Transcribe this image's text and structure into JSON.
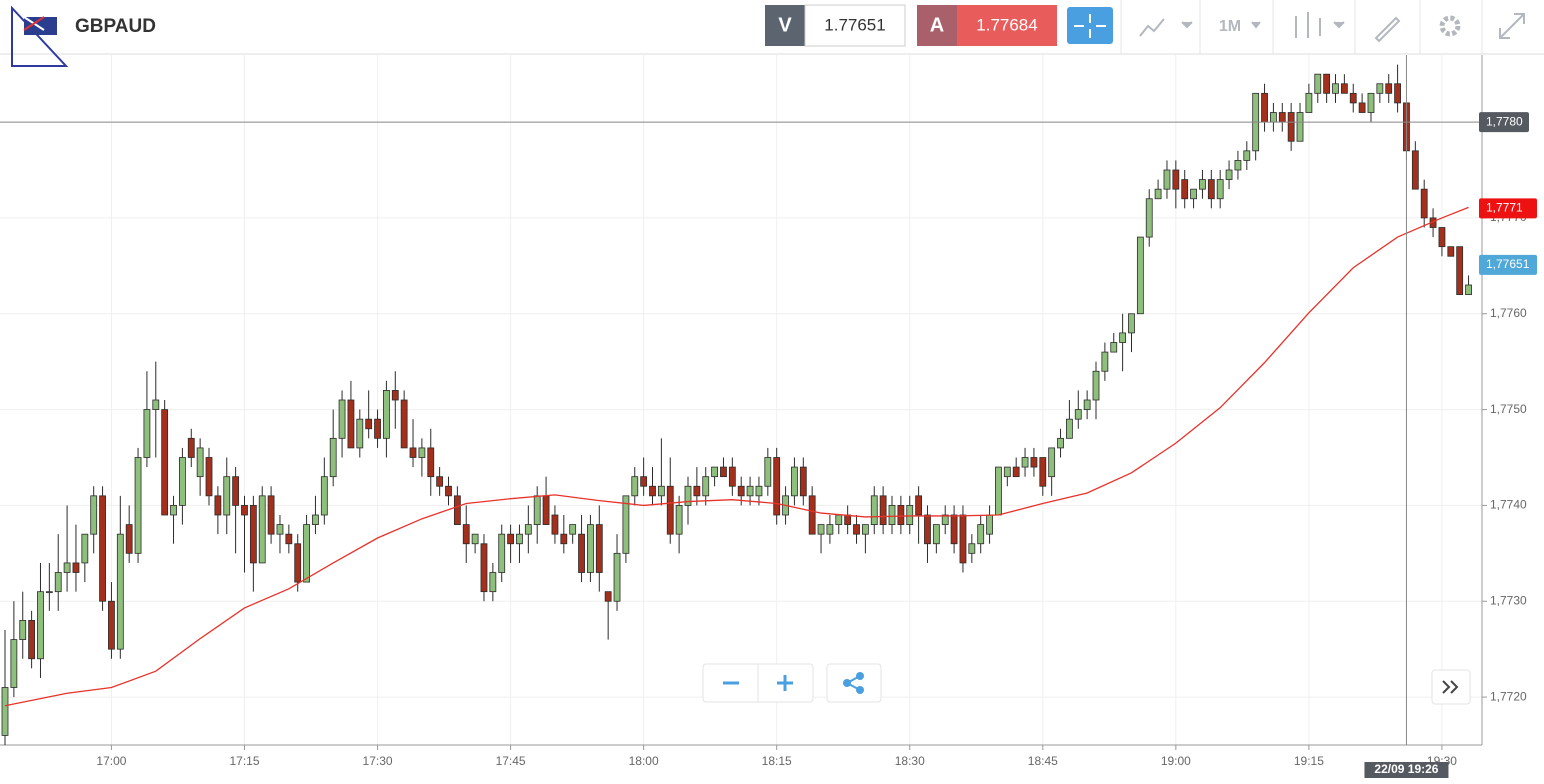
{
  "header": {
    "symbol": "GBPAUD",
    "bid_tag": "V",
    "bid": 1.77651,
    "ask_tag": "A",
    "ask": 1.77684,
    "timeframe": "1M"
  },
  "chart_data": {
    "type": "candlestick",
    "up_color": "#8fbf7c",
    "down_color": "#a3301c",
    "outline_color": "#2b2b2b",
    "grid": true,
    "x": [
      "16:48",
      "16:49",
      "16:50",
      "16:51",
      "16:52",
      "16:53",
      "16:54",
      "16:55",
      "16:56",
      "16:57",
      "16:58",
      "16:59",
      "17:00",
      "17:01",
      "17:02",
      "17:03",
      "17:04",
      "17:05",
      "17:06",
      "17:07",
      "17:08",
      "17:09",
      "17:10",
      "17:11",
      "17:12",
      "17:13",
      "17:14",
      "17:15",
      "17:16",
      "17:17",
      "17:18",
      "17:19",
      "17:20",
      "17:21",
      "17:22",
      "17:23",
      "17:24",
      "17:25",
      "17:26",
      "17:27",
      "17:28",
      "17:29",
      "17:30",
      "17:31",
      "17:32",
      "17:33",
      "17:34",
      "17:35",
      "17:36",
      "17:37",
      "17:38",
      "17:39",
      "17:40",
      "17:41",
      "17:42",
      "17:43",
      "17:44",
      "17:45",
      "17:46",
      "17:47",
      "17:48",
      "17:49",
      "17:50",
      "17:51",
      "17:52",
      "17:53",
      "17:54",
      "17:55",
      "17:56",
      "17:57",
      "17:58",
      "17:59",
      "18:00",
      "18:01",
      "18:02",
      "18:03",
      "18:04",
      "18:05",
      "18:06",
      "18:07",
      "18:08",
      "18:09",
      "18:10",
      "18:11",
      "18:12",
      "18:13",
      "18:14",
      "18:15",
      "18:16",
      "18:17",
      "18:18",
      "18:19",
      "18:20",
      "18:21",
      "18:22",
      "18:23",
      "18:24",
      "18:25",
      "18:26",
      "18:27",
      "18:28",
      "18:29",
      "18:30",
      "18:31",
      "18:32",
      "18:33",
      "18:34",
      "18:35",
      "18:36",
      "18:37",
      "18:38",
      "18:39",
      "18:40",
      "18:41",
      "18:42",
      "18:43",
      "18:44",
      "18:45",
      "18:46",
      "18:47",
      "18:48",
      "18:49",
      "18:50",
      "18:51",
      "18:52",
      "18:53",
      "18:54",
      "18:55",
      "18:56",
      "18:57",
      "18:58",
      "18:59",
      "19:00",
      "19:01",
      "19:02",
      "19:03",
      "19:04",
      "19:05",
      "19:06",
      "19:07",
      "19:08",
      "19:09",
      "19:10",
      "19:11",
      "19:12",
      "19:13",
      "19:14",
      "19:15",
      "19:16",
      "19:17",
      "19:18",
      "19:19",
      "19:20",
      "19:21",
      "19:22",
      "19:23",
      "19:24",
      "19:25",
      "19:26",
      "19:27",
      "19:28",
      "19:29",
      "19:30",
      "19:31",
      "19:32",
      "19:33"
    ],
    "ohlc": [
      [
        1.7716,
        1.7727,
        1.7715,
        1.7721
      ],
      [
        1.7721,
        1.773,
        1.772,
        1.7726
      ],
      [
        1.7726,
        1.7731,
        1.7724,
        1.7728
      ],
      [
        1.7728,
        1.7729,
        1.7723,
        1.7724
      ],
      [
        1.7724,
        1.7734,
        1.7722,
        1.7731
      ],
      [
        1.7731,
        1.7734,
        1.7729,
        1.7731
      ],
      [
        1.7731,
        1.7737,
        1.7729,
        1.7733
      ],
      [
        1.7733,
        1.774,
        1.7731,
        1.7734
      ],
      [
        1.7734,
        1.7738,
        1.7731,
        1.7733
      ],
      [
        1.7734,
        1.7737,
        1.7732,
        1.7737
      ],
      [
        1.7737,
        1.7742,
        1.7735,
        1.7741
      ],
      [
        1.7741,
        1.7742,
        1.7729,
        1.773
      ],
      [
        1.773,
        1.7732,
        1.7724,
        1.7725
      ],
      [
        1.7725,
        1.7741,
        1.7724,
        1.7737
      ],
      [
        1.7738,
        1.774,
        1.7734,
        1.7735
      ],
      [
        1.7735,
        1.7746,
        1.7734,
        1.7745
      ],
      [
        1.7745,
        1.7754,
        1.7744,
        1.775
      ],
      [
        1.775,
        1.7755,
        1.7745,
        1.7751
      ],
      [
        1.775,
        1.7751,
        1.7739,
        1.7739
      ],
      [
        1.7739,
        1.7741,
        1.7736,
        1.774
      ],
      [
        1.774,
        1.7746,
        1.7738,
        1.7745
      ],
      [
        1.7747,
        1.7748,
        1.7744,
        1.7745
      ],
      [
        1.7743,
        1.7747,
        1.7741,
        1.7746
      ],
      [
        1.7745,
        1.7746,
        1.774,
        1.7741
      ],
      [
        1.7741,
        1.7742,
        1.7737,
        1.7739
      ],
      [
        1.7739,
        1.7745,
        1.7737,
        1.7743
      ],
      [
        1.7743,
        1.7744,
        1.7735,
        1.774
      ],
      [
        1.774,
        1.7741,
        1.7733,
        1.7739
      ],
      [
        1.774,
        1.7741,
        1.7731,
        1.7734
      ],
      [
        1.7734,
        1.7742,
        1.7734,
        1.7741
      ],
      [
        1.7741,
        1.7742,
        1.7736,
        1.7737
      ],
      [
        1.7737,
        1.7739,
        1.7735,
        1.7738
      ],
      [
        1.7737,
        1.7738,
        1.7735,
        1.7736
      ],
      [
        1.7736,
        1.7737,
        1.7731,
        1.7732
      ],
      [
        1.7732,
        1.7739,
        1.7732,
        1.7738
      ],
      [
        1.7738,
        1.7741,
        1.7737,
        1.7739
      ],
      [
        1.7739,
        1.7745,
        1.7738,
        1.7743
      ],
      [
        1.7743,
        1.775,
        1.7742,
        1.7747
      ],
      [
        1.7747,
        1.7752,
        1.7745,
        1.7751
      ],
      [
        1.7751,
        1.7753,
        1.7746,
        1.7746
      ],
      [
        1.7746,
        1.775,
        1.7745,
        1.7749
      ],
      [
        1.7749,
        1.7752,
        1.7747,
        1.7748
      ],
      [
        1.7749,
        1.775,
        1.7746,
        1.7747
      ],
      [
        1.7747,
        1.7753,
        1.7745,
        1.7752
      ],
      [
        1.7752,
        1.7754,
        1.7748,
        1.7751
      ],
      [
        1.7751,
        1.7752,
        1.7746,
        1.7746
      ],
      [
        1.7746,
        1.7749,
        1.7744,
        1.7745
      ],
      [
        1.7745,
        1.7747,
        1.7743,
        1.7746
      ],
      [
        1.7746,
        1.7748,
        1.7741,
        1.7743
      ],
      [
        1.7743,
        1.7744,
        1.7741,
        1.7742
      ],
      [
        1.7742,
        1.7743,
        1.774,
        1.7741
      ],
      [
        1.7741,
        1.7742,
        1.7738,
        1.7738
      ],
      [
        1.7738,
        1.774,
        1.7734,
        1.7736
      ],
      [
        1.7736,
        1.7737,
        1.7735,
        1.7737
      ],
      [
        1.7736,
        1.7737,
        1.773,
        1.7731
      ],
      [
        1.7731,
        1.7734,
        1.773,
        1.7733
      ],
      [
        1.7733,
        1.7738,
        1.7732,
        1.7737
      ],
      [
        1.7737,
        1.7738,
        1.7734,
        1.7736
      ],
      [
        1.7736,
        1.7738,
        1.7734,
        1.7737
      ],
      [
        1.7737,
        1.774,
        1.7735,
        1.7738
      ],
      [
        1.7738,
        1.7742,
        1.7736,
        1.7741
      ],
      [
        1.7741,
        1.7743,
        1.7738,
        1.7738
      ],
      [
        1.7739,
        1.774,
        1.7736,
        1.7737
      ],
      [
        1.7737,
        1.7739,
        1.7735,
        1.7736
      ],
      [
        1.7737,
        1.7738,
        1.7736,
        1.7738
      ],
      [
        1.7737,
        1.7739,
        1.7732,
        1.7733
      ],
      [
        1.7733,
        1.7739,
        1.7732,
        1.7738
      ],
      [
        1.7738,
        1.774,
        1.7731,
        1.7733
      ],
      [
        1.7731,
        1.7731,
        1.7726,
        1.773
      ],
      [
        1.773,
        1.7737,
        1.7729,
        1.7735
      ],
      [
        1.7735,
        1.7741,
        1.7734,
        1.7741
      ],
      [
        1.7741,
        1.7744,
        1.774,
        1.7743
      ],
      [
        1.7743,
        1.7745,
        1.7741,
        1.7742
      ],
      [
        1.7742,
        1.7744,
        1.774,
        1.7741
      ],
      [
        1.7741,
        1.7747,
        1.774,
        1.7742
      ],
      [
        1.7742,
        1.7745,
        1.7736,
        1.7737
      ],
      [
        1.7737,
        1.7741,
        1.7735,
        1.774
      ],
      [
        1.774,
        1.7743,
        1.7738,
        1.7742
      ],
      [
        1.7742,
        1.7744,
        1.774,
        1.7741
      ],
      [
        1.7741,
        1.7744,
        1.774,
        1.7743
      ],
      [
        1.7743,
        1.7744,
        1.7742,
        1.7744
      ],
      [
        1.7744,
        1.7745,
        1.7743,
        1.7743
      ],
      [
        1.7744,
        1.7745,
        1.7741,
        1.7742
      ],
      [
        1.7742,
        1.7743,
        1.774,
        1.7741
      ],
      [
        1.7741,
        1.7743,
        1.774,
        1.7742
      ],
      [
        1.7741,
        1.7743,
        1.774,
        1.7742
      ],
      [
        1.7742,
        1.7746,
        1.7741,
        1.7745
      ],
      [
        1.7745,
        1.7746,
        1.7738,
        1.7739
      ],
      [
        1.7739,
        1.7742,
        1.7738,
        1.7741
      ],
      [
        1.7741,
        1.7745,
        1.774,
        1.7744
      ],
      [
        1.7744,
        1.7745,
        1.774,
        1.7741
      ],
      [
        1.7741,
        1.7742,
        1.7737,
        1.7737
      ],
      [
        1.7737,
        1.7738,
        1.7735,
        1.7738
      ],
      [
        1.7737,
        1.7739,
        1.7736,
        1.7738
      ],
      [
        1.7738,
        1.7739,
        1.7737,
        1.7739
      ],
      [
        1.7739,
        1.774,
        1.7737,
        1.7738
      ],
      [
        1.7738,
        1.7739,
        1.7736,
        1.7737
      ],
      [
        1.7737,
        1.7738,
        1.7735,
        1.7738
      ],
      [
        1.7738,
        1.7742,
        1.7737,
        1.7741
      ],
      [
        1.7741,
        1.7742,
        1.7737,
        1.7738
      ],
      [
        1.7738,
        1.7741,
        1.7737,
        1.774
      ],
      [
        1.774,
        1.7741,
        1.7737,
        1.7738
      ],
      [
        1.7738,
        1.7741,
        1.7737,
        1.774
      ],
      [
        1.7741,
        1.7742,
        1.7736,
        1.7739
      ],
      [
        1.7739,
        1.774,
        1.7734,
        1.7736
      ],
      [
        1.7736,
        1.7738,
        1.7735,
        1.7738
      ],
      [
        1.7738,
        1.774,
        1.7737,
        1.7739
      ],
      [
        1.7739,
        1.774,
        1.7735,
        1.7736
      ],
      [
        1.7739,
        1.774,
        1.7733,
        1.7734
      ],
      [
        1.7735,
        1.7737,
        1.7734,
        1.7736
      ],
      [
        1.7736,
        1.7739,
        1.7735,
        1.7738
      ],
      [
        1.7737,
        1.774,
        1.7736,
        1.7739
      ],
      [
        1.7739,
        1.7744,
        1.7739,
        1.7744
      ],
      [
        1.7743,
        1.7744,
        1.7742,
        1.7744
      ],
      [
        1.7744,
        1.7745,
        1.7743,
        1.7743
      ],
      [
        1.7744,
        1.7746,
        1.7743,
        1.7745
      ],
      [
        1.7745,
        1.7746,
        1.7743,
        1.7744
      ],
      [
        1.7745,
        1.7745,
        1.7741,
        1.7742
      ],
      [
        1.7743,
        1.7746,
        1.7741,
        1.7746
      ],
      [
        1.7746,
        1.7748,
        1.7745,
        1.7747
      ],
      [
        1.7747,
        1.7751,
        1.7747,
        1.7749
      ],
      [
        1.7749,
        1.7752,
        1.7748,
        1.775
      ],
      [
        1.775,
        1.7752,
        1.7749,
        1.7751
      ],
      [
        1.7751,
        1.7755,
        1.7749,
        1.7754
      ],
      [
        1.7754,
        1.7757,
        1.7753,
        1.7756
      ],
      [
        1.7756,
        1.7758,
        1.7756,
        1.7757
      ],
      [
        1.7757,
        1.776,
        1.7754,
        1.7758
      ],
      [
        1.7758,
        1.776,
        1.7756,
        1.776
      ],
      [
        1.776,
        1.7768,
        1.776,
        1.7768
      ],
      [
        1.7768,
        1.7773,
        1.7767,
        1.7772
      ],
      [
        1.7772,
        1.7774,
        1.7772,
        1.7773
      ],
      [
        1.7773,
        1.7776,
        1.7772,
        1.7775
      ],
      [
        1.7775,
        1.7776,
        1.7771,
        1.7773
      ],
      [
        1.7774,
        1.7775,
        1.7771,
        1.7772
      ],
      [
        1.7772,
        1.7773,
        1.7771,
        1.7773
      ],
      [
        1.7773,
        1.7775,
        1.7772,
        1.7774
      ],
      [
        1.7774,
        1.7775,
        1.7771,
        1.7772
      ],
      [
        1.7772,
        1.7775,
        1.7771,
        1.7774
      ],
      [
        1.7774,
        1.7776,
        1.7773,
        1.7775
      ],
      [
        1.7775,
        1.7777,
        1.7774,
        1.7776
      ],
      [
        1.7776,
        1.7778,
        1.7775,
        1.7777
      ],
      [
        1.7777,
        1.7783,
        1.7776,
        1.7783
      ],
      [
        1.7783,
        1.7784,
        1.7779,
        1.778
      ],
      [
        1.778,
        1.7782,
        1.7779,
        1.7781
      ],
      [
        1.7781,
        1.7782,
        1.7779,
        1.778
      ],
      [
        1.7781,
        1.7782,
        1.7777,
        1.7778
      ],
      [
        1.7778,
        1.7782,
        1.7778,
        1.7781
      ],
      [
        1.7781,
        1.7784,
        1.7781,
        1.7783
      ],
      [
        1.7783,
        1.7785,
        1.7782,
        1.7785
      ],
      [
        1.7785,
        1.7785,
        1.7782,
        1.7783
      ],
      [
        1.7783,
        1.7785,
        1.7782,
        1.7784
      ],
      [
        1.7784,
        1.7785,
        1.7783,
        1.7783
      ],
      [
        1.7783,
        1.7784,
        1.7781,
        1.7782
      ],
      [
        1.7782,
        1.7783,
        1.7781,
        1.7781
      ],
      [
        1.7781,
        1.7783,
        1.778,
        1.7783
      ],
      [
        1.7783,
        1.7784,
        1.7782,
        1.7784
      ],
      [
        1.7784,
        1.7785,
        1.7782,
        1.7783
      ],
      [
        1.7784,
        1.7786,
        1.7781,
        1.7782
      ],
      [
        1.7782,
        1.7782,
        1.7776,
        1.7777
      ],
      [
        1.7777,
        1.7778,
        1.7773,
        1.7773
      ],
      [
        1.7773,
        1.7774,
        1.7769,
        1.777
      ],
      [
        1.777,
        1.7771,
        1.7768,
        1.7769
      ],
      [
        1.7769,
        1.7769,
        1.7766,
        1.7767
      ],
      [
        1.7767,
        1.7767,
        1.7766,
        1.7766
      ],
      [
        1.7767,
        1.7767,
        1.7762,
        1.7762
      ],
      [
        1.7762,
        1.7764,
        1.7762,
        1.7763
      ]
    ],
    "ma": {
      "color": "#e8322a",
      "x": [
        "16:48",
        "16:55",
        "17:00",
        "17:05",
        "17:10",
        "17:15",
        "17:20",
        "17:25",
        "17:30",
        "17:35",
        "17:40",
        "17:45",
        "17:50",
        "17:55",
        "18:00",
        "18:05",
        "18:10",
        "18:15",
        "18:20",
        "18:25",
        "18:30",
        "18:35",
        "18:40",
        "18:45",
        "18:50",
        "18:55",
        "19:00",
        "19:05",
        "19:10",
        "19:15",
        "19:20",
        "19:25",
        "19:30",
        "19:33"
      ],
      "values": [
        1.77191,
        1.77204,
        1.7721,
        1.77227,
        1.77261,
        1.77293,
        1.77313,
        1.7734,
        1.77366,
        1.77386,
        1.77402,
        1.77407,
        1.77411,
        1.77405,
        1.774,
        1.77404,
        1.77406,
        1.77402,
        1.77392,
        1.77388,
        1.77389,
        1.77389,
        1.7739,
        1.77402,
        1.77413,
        1.77434,
        1.77465,
        1.77502,
        1.77549,
        1.77601,
        1.77648,
        1.7768,
        1.777,
        1.77711
      ]
    },
    "ylim": [
      1.7715,
      1.7787
    ],
    "yticks": [
      {
        "value": 1.772,
        "label": "1,7720"
      },
      {
        "value": 1.773,
        "label": "1,7730"
      },
      {
        "value": 1.774,
        "label": "1,7740"
      },
      {
        "value": 1.775,
        "label": "1,7750"
      },
      {
        "value": 1.776,
        "label": "1,7760"
      },
      {
        "value": 1.777,
        "label": "1,7770"
      },
      {
        "value": 1.778,
        "label": "1,7780"
      }
    ],
    "xticks": [
      "17:00",
      "17:15",
      "17:30",
      "17:45",
      "18:00",
      "18:15",
      "18:30",
      "18:45",
      "19:00",
      "19:15",
      "19:30"
    ],
    "price_tags": [
      {
        "value": 1.7771,
        "label": "1,7771",
        "color": "#ee1111"
      },
      {
        "value": 1.77651,
        "label": "1,77651",
        "color": "#4fa8d8"
      }
    ],
    "crosshair": {
      "x": "19:26",
      "x_label": "22/09 19:26",
      "y": 1.778,
      "y_label": "1,7780",
      "color": "#555a60"
    }
  }
}
